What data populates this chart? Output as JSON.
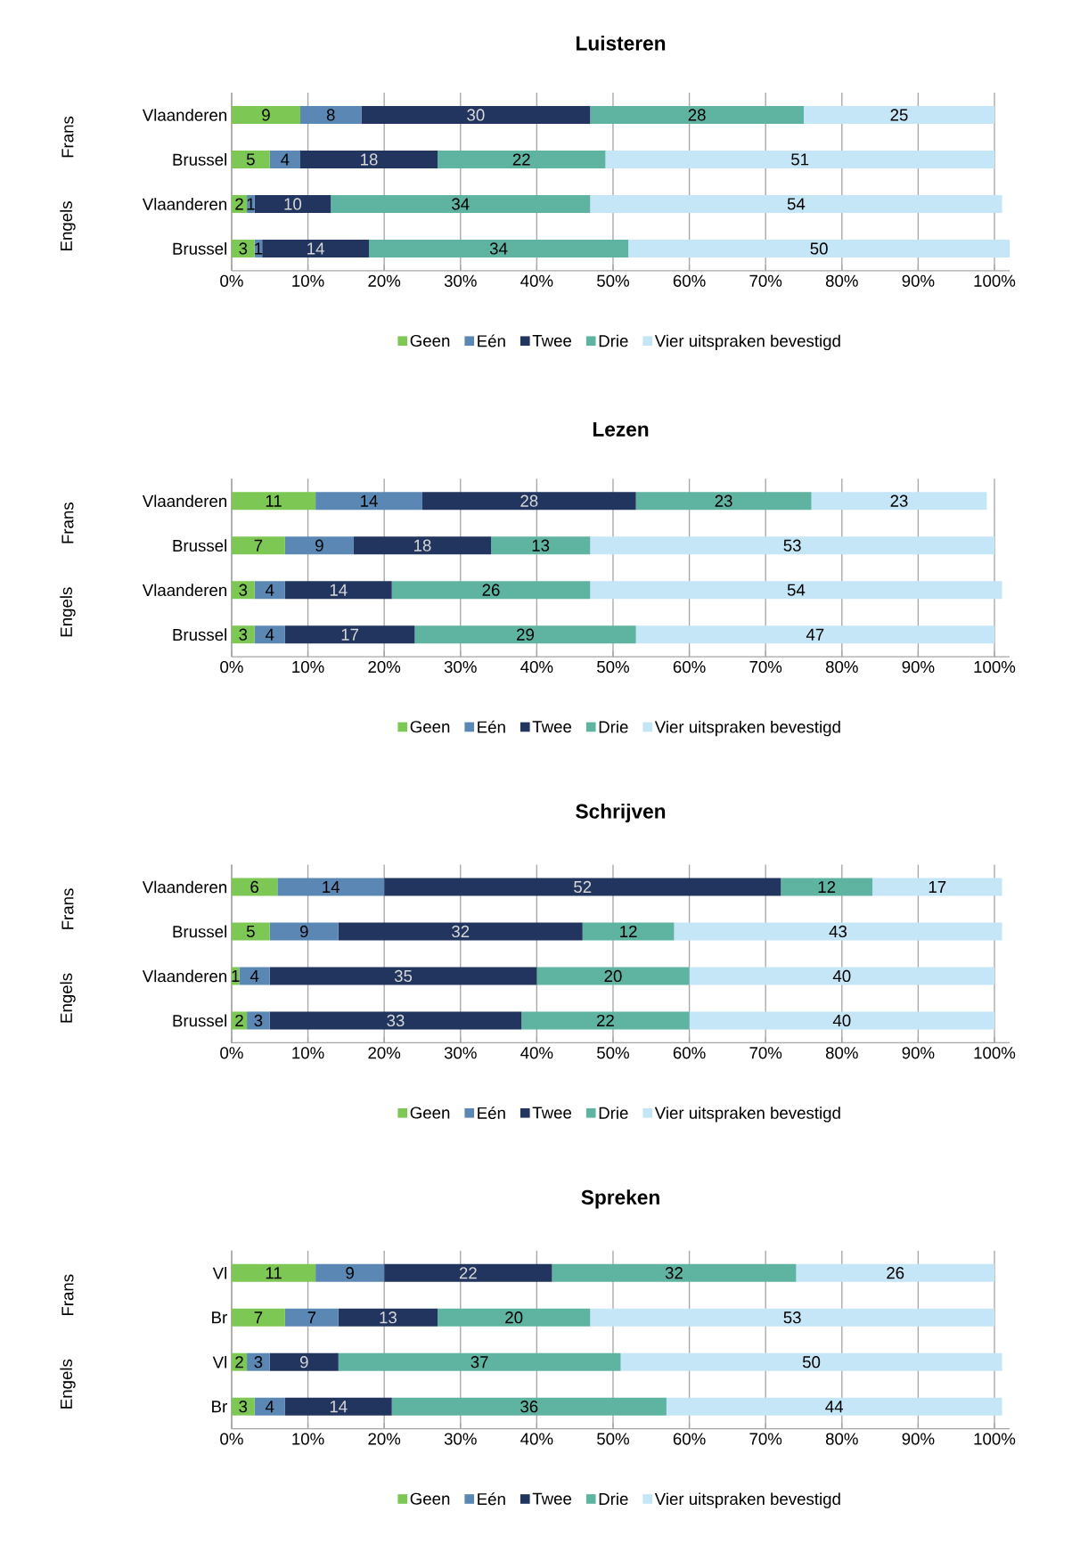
{
  "chart_data": [
    {
      "type": "bar",
      "orientation": "horizontal",
      "stacked": true,
      "title": "Luisteren",
      "categories": [
        "Vlaanderen",
        "Brussel",
        "Vlaanderen",
        "Brussel"
      ],
      "annotations": [
        "Frans",
        "Engels"
      ],
      "series": [
        {
          "name": "Geen",
          "color": "#7dc855",
          "values": [
            9,
            5,
            2,
            3
          ]
        },
        {
          "name": "Eén",
          "color": "#5b87b5",
          "values": [
            8,
            4,
            1,
            1
          ]
        },
        {
          "name": "Twee",
          "color": "#22355f",
          "values": [
            30,
            18,
            10,
            14
          ]
        },
        {
          "name": "Drie",
          "color": "#5fb3a1",
          "values": [
            28,
            22,
            34,
            34
          ]
        },
        {
          "name": "Vier uitspraken bevestigd",
          "color": "#c5e6f6",
          "values": [
            25,
            51,
            54,
            50
          ]
        }
      ],
      "xlim": [
        0,
        102
      ],
      "xticks": [
        {
          "value": 0,
          "label": "0%"
        },
        {
          "value": 10,
          "label": "10%"
        },
        {
          "value": 20,
          "label": "20%"
        },
        {
          "value": 30,
          "label": "30%"
        },
        {
          "value": 40,
          "label": "40%"
        },
        {
          "value": 50,
          "label": "50%"
        },
        {
          "value": 60,
          "label": "60%"
        },
        {
          "value": 70,
          "label": "70%"
        },
        {
          "value": 80,
          "label": "80%"
        },
        {
          "value": 90,
          "label": "90%"
        },
        {
          "value": 100,
          "label": "100%"
        }
      ],
      "grid": "x",
      "legend": "bottom",
      "data_labels": true
    },
    {
      "type": "bar",
      "orientation": "horizontal",
      "stacked": true,
      "title": "Lezen",
      "categories": [
        "Vlaanderen",
        "Brussel",
        "Vlaanderen",
        "Brussel"
      ],
      "annotations": [
        "Frans",
        "Engels"
      ],
      "series": [
        {
          "name": "Geen",
          "color": "#7dc855",
          "values": [
            11,
            7,
            3,
            3
          ]
        },
        {
          "name": "Eén",
          "color": "#5b87b5",
          "values": [
            14,
            9,
            4,
            4
          ]
        },
        {
          "name": "Twee",
          "color": "#22355f",
          "values": [
            28,
            18,
            14,
            17
          ]
        },
        {
          "name": "Drie",
          "color": "#5fb3a1",
          "values": [
            23,
            13,
            26,
            29
          ]
        },
        {
          "name": "Vier uitspraken bevestigd",
          "color": "#c5e6f6",
          "values": [
            23,
            53,
            54,
            47
          ]
        }
      ],
      "xlim": [
        0,
        102
      ],
      "xticks": [
        {
          "value": 0,
          "label": "0%"
        },
        {
          "value": 10,
          "label": "10%"
        },
        {
          "value": 20,
          "label": "20%"
        },
        {
          "value": 30,
          "label": "30%"
        },
        {
          "value": 40,
          "label": "40%"
        },
        {
          "value": 50,
          "label": "50%"
        },
        {
          "value": 60,
          "label": "60%"
        },
        {
          "value": 70,
          "label": "70%"
        },
        {
          "value": 80,
          "label": "80%"
        },
        {
          "value": 90,
          "label": "90%"
        },
        {
          "value": 100,
          "label": "100%"
        }
      ],
      "grid": "x",
      "legend": "bottom",
      "data_labels": true
    },
    {
      "type": "bar",
      "orientation": "horizontal",
      "stacked": true,
      "title": "Schrijven",
      "categories": [
        "Vlaanderen",
        "Brussel",
        "Vlaanderen",
        "Brussel"
      ],
      "annotations": [
        "Frans",
        "Engels"
      ],
      "series": [
        {
          "name": "Geen",
          "color": "#7dc855",
          "values": [
            6,
            5,
            1,
            2
          ]
        },
        {
          "name": "Eén",
          "color": "#5b87b5",
          "values": [
            14,
            9,
            4,
            3
          ]
        },
        {
          "name": "Twee",
          "color": "#22355f",
          "values": [
            52,
            32,
            35,
            33
          ]
        },
        {
          "name": "Drie",
          "color": "#5fb3a1",
          "values": [
            12,
            12,
            20,
            22
          ]
        },
        {
          "name": "Vier uitspraken bevestigd",
          "color": "#c5e6f6",
          "values": [
            17,
            43,
            40,
            40
          ]
        }
      ],
      "xlim": [
        0,
        102
      ],
      "xticks": [
        {
          "value": 0,
          "label": "0%"
        },
        {
          "value": 10,
          "label": "10%"
        },
        {
          "value": 20,
          "label": "20%"
        },
        {
          "value": 30,
          "label": "30%"
        },
        {
          "value": 40,
          "label": "40%"
        },
        {
          "value": 50,
          "label": "50%"
        },
        {
          "value": 60,
          "label": "60%"
        },
        {
          "value": 70,
          "label": "70%"
        },
        {
          "value": 80,
          "label": "80%"
        },
        {
          "value": 90,
          "label": "90%"
        },
        {
          "value": 100,
          "label": "100%"
        }
      ],
      "grid": "x",
      "legend": "bottom",
      "data_labels": true
    },
    {
      "type": "bar",
      "orientation": "horizontal",
      "stacked": true,
      "title": "Spreken",
      "categories": [
        "Vl",
        "Br",
        "Vl",
        "Br"
      ],
      "annotations": [
        "Frans",
        "Engels"
      ],
      "series": [
        {
          "name": "Geen",
          "color": "#7dc855",
          "values": [
            11,
            7,
            2,
            3
          ]
        },
        {
          "name": "Eén",
          "color": "#5b87b5",
          "values": [
            9,
            7,
            3,
            4
          ]
        },
        {
          "name": "Twee",
          "color": "#22355f",
          "values": [
            22,
            13,
            9,
            14
          ]
        },
        {
          "name": "Drie",
          "color": "#5fb3a1",
          "values": [
            32,
            20,
            37,
            36
          ]
        },
        {
          "name": "Vier uitspraken bevestigd",
          "color": "#c5e6f6",
          "values": [
            26,
            53,
            50,
            44
          ]
        }
      ],
      "xlim": [
        0,
        102
      ],
      "xticks": [
        {
          "value": 0,
          "label": "0%"
        },
        {
          "value": 10,
          "label": "10%"
        },
        {
          "value": 20,
          "label": "20%"
        },
        {
          "value": 30,
          "label": "30%"
        },
        {
          "value": 40,
          "label": "40%"
        },
        {
          "value": 50,
          "label": "50%"
        },
        {
          "value": 60,
          "label": "60%"
        },
        {
          "value": 70,
          "label": "70%"
        },
        {
          "value": 80,
          "label": "80%"
        },
        {
          "value": 90,
          "label": "90%"
        },
        {
          "value": 100,
          "label": "100%"
        }
      ],
      "grid": "x",
      "legend": "bottom",
      "data_labels": true
    }
  ]
}
